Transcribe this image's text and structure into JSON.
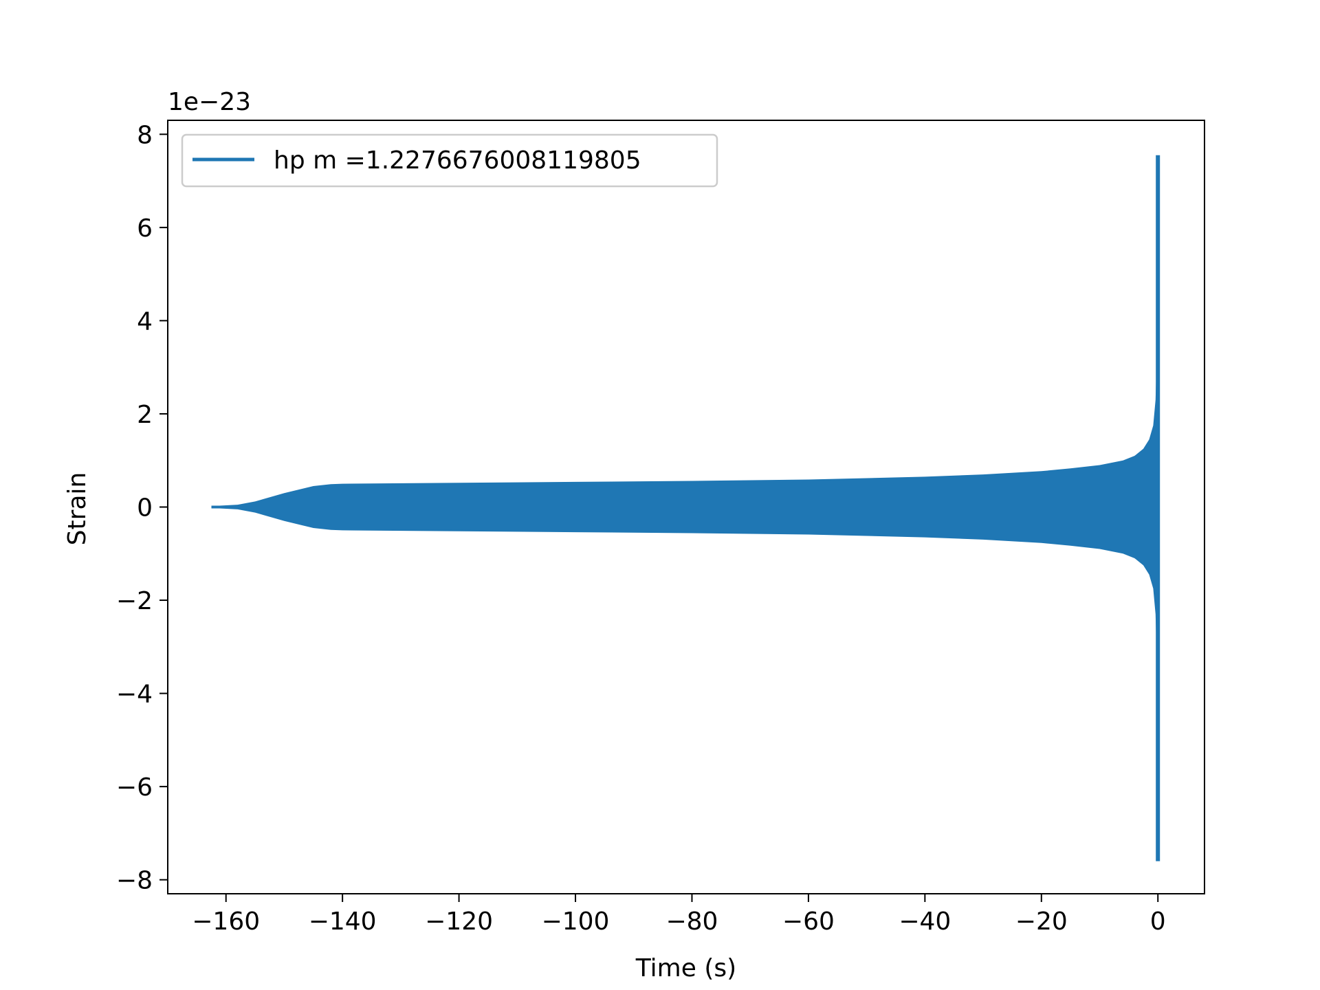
{
  "chart_data": {
    "type": "area",
    "title": "",
    "xlabel": "Time (s)",
    "ylabel": "Strain",
    "y_offset_label": "1e−23",
    "xlim": [
      -170,
      8
    ],
    "ylim": [
      -8.3,
      8.3
    ],
    "xticks": [
      -160,
      -140,
      -120,
      -100,
      -80,
      -60,
      -40,
      -20,
      0
    ],
    "xtick_labels": [
      "−160",
      "−140",
      "−120",
      "−100",
      "−80",
      "−60",
      "−40",
      "−20",
      "0"
    ],
    "yticks": [
      8,
      6,
      4,
      2,
      0,
      -2,
      -4,
      -6,
      -8
    ],
    "ytick_labels": [
      "8",
      "6",
      "4",
      "2",
      "0",
      "−2",
      "−4",
      "−6",
      "−8"
    ],
    "grid": false,
    "legend_position": "top-left",
    "series": [
      {
        "name": "hp m =1.2276676008119805",
        "color": "#1f77b4",
        "envelope_x": [
          -162.5,
          -158,
          -155,
          -150,
          -145,
          -142,
          -140,
          -120,
          -100,
          -80,
          -60,
          -40,
          -30,
          -20,
          -15,
          -10,
          -6,
          -4,
          -2.5,
          -1.5,
          -0.8,
          -0.4,
          -0.15,
          -0.05,
          0
        ],
        "envelope_amplitude": [
          0.02,
          0.05,
          0.12,
          0.3,
          0.45,
          0.49,
          0.5,
          0.52,
          0.54,
          0.56,
          0.59,
          0.65,
          0.7,
          0.77,
          0.83,
          0.9,
          1.0,
          1.1,
          1.25,
          1.45,
          1.75,
          2.3,
          3.5,
          5.5,
          7.55
        ],
        "peak_min": -7.6
      }
    ]
  }
}
